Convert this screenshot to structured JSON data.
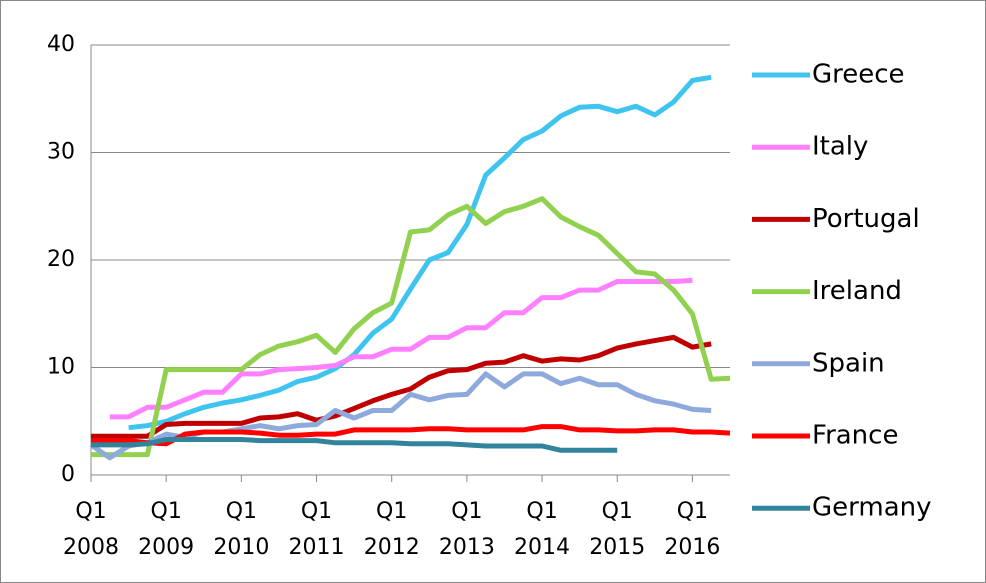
{
  "chart_data": {
    "type": "line",
    "categories": [
      "Q1 2008",
      null,
      null,
      null,
      "Q1 2009",
      null,
      null,
      null,
      "Q1 2010",
      null,
      null,
      null,
      "Q1 2011",
      null,
      null,
      null,
      "Q1 2012",
      null,
      null,
      null,
      "Q1 2013",
      null,
      null,
      null,
      "Q1 2014",
      null,
      null,
      null,
      "Q1 2015",
      null,
      null,
      null,
      "Q1 2016",
      null,
      null
    ],
    "series": [
      {
        "name": "Greece",
        "color": "#3fc4f0",
        "values": [
          null,
          null,
          4.4,
          4.6,
          5.0,
          5.7,
          6.3,
          6.7,
          7.0,
          7.4,
          7.9,
          8.7,
          9.1,
          9.9,
          11.2,
          13.2,
          14.5,
          17.3,
          20.0,
          20.7,
          23.3,
          27.9,
          29.5,
          31.2,
          32.0,
          33.4,
          34.2,
          34.3,
          33.8,
          34.3,
          33.5,
          34.7,
          36.7,
          37.0,
          null
        ]
      },
      {
        "name": "Italy",
        "color": "#ff80ff",
        "values": [
          null,
          5.4,
          5.4,
          6.3,
          6.3,
          7.0,
          7.7,
          7.7,
          9.4,
          9.4,
          9.8,
          9.9,
          10.0,
          10.2,
          11.0,
          11.0,
          11.7,
          11.7,
          12.8,
          12.8,
          13.7,
          13.7,
          15.1,
          15.1,
          16.5,
          16.5,
          17.2,
          17.2,
          18.0,
          18.0,
          18.0,
          18.0,
          18.1,
          null,
          null
        ]
      },
      {
        "name": "Portugal",
        "color": "#c00000",
        "values": [
          3.6,
          3.6,
          3.6,
          3.6,
          4.7,
          4.8,
          4.8,
          4.8,
          4.8,
          5.3,
          5.4,
          5.7,
          5.1,
          5.5,
          6.2,
          6.9,
          7.5,
          8.0,
          9.1,
          9.7,
          9.8,
          10.4,
          10.5,
          11.1,
          10.6,
          10.8,
          10.7,
          11.1,
          11.8,
          12.2,
          12.5,
          12.8,
          11.9,
          12.2,
          null
        ]
      },
      {
        "name": "Ireland",
        "color": "#92d050",
        "values": [
          1.9,
          1.9,
          1.9,
          1.9,
          9.8,
          9.8,
          9.8,
          9.8,
          9.8,
          11.2,
          12.0,
          12.4,
          13.0,
          11.4,
          13.6,
          15.1,
          16.0,
          22.6,
          22.8,
          24.2,
          25.0,
          23.4,
          24.5,
          25.0,
          25.7,
          24.0,
          23.1,
          22.3,
          20.6,
          18.9,
          18.7,
          17.2,
          15.0,
          8.9,
          9.0
        ]
      },
      {
        "name": "Spain",
        "color": "#8ea9db",
        "values": [
          2.8,
          1.6,
          2.7,
          3.0,
          3.8,
          3.5,
          4.0,
          4.0,
          4.3,
          4.6,
          4.3,
          4.6,
          4.7,
          6.0,
          5.3,
          6.0,
          6.0,
          7.5,
          7.0,
          7.4,
          7.5,
          9.4,
          8.2,
          9.4,
          9.4,
          8.5,
          9.0,
          8.4,
          8.4,
          7.5,
          6.9,
          6.6,
          6.1,
          6.0,
          null
        ]
      },
      {
        "name": "France",
        "color": "#ff0000",
        "values": [
          3.2,
          3.2,
          3.2,
          3.0,
          2.9,
          3.8,
          4.0,
          4.0,
          4.0,
          3.9,
          3.7,
          3.7,
          3.8,
          3.8,
          4.2,
          4.2,
          4.2,
          4.2,
          4.3,
          4.3,
          4.2,
          4.2,
          4.2,
          4.2,
          4.5,
          4.5,
          4.2,
          4.2,
          4.1,
          4.1,
          4.2,
          4.2,
          4.0,
          4.0,
          3.9
        ]
      },
      {
        "name": "Germany",
        "color": "#31849b",
        "values": [
          2.8,
          2.8,
          2.8,
          2.9,
          3.3,
          3.3,
          3.3,
          3.3,
          3.3,
          3.2,
          3.2,
          3.2,
          3.2,
          3.0,
          3.0,
          3.0,
          3.0,
          2.9,
          2.9,
          2.9,
          2.8,
          2.7,
          2.7,
          2.7,
          2.7,
          2.3,
          2.3,
          2.3,
          2.3,
          null,
          null,
          null,
          null,
          null,
          null
        ]
      }
    ],
    "ylim": [
      0,
      40
    ],
    "yticks": [
      0,
      10,
      20,
      30,
      40
    ],
    "grid": true,
    "legend": "right"
  }
}
